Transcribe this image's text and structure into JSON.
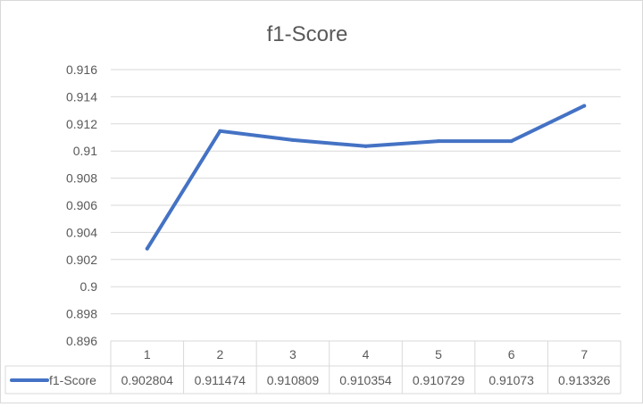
{
  "chart_data": {
    "type": "line",
    "title": "f1-Score",
    "categories": [
      "1",
      "2",
      "3",
      "4",
      "5",
      "6",
      "7"
    ],
    "series": [
      {
        "name": "f1-Score",
        "values": [
          0.902804,
          0.911474,
          0.910809,
          0.910354,
          0.910729,
          0.91073,
          0.913326
        ],
        "table_values": [
          "0.902804",
          "0.911474",
          "0.910809",
          "0.910354",
          "0.910729",
          "0.91073",
          "0.913326"
        ],
        "color": "#4472c4"
      }
    ],
    "ylim": [
      0.896,
      0.916
    ],
    "y_ticks": [
      "0.916",
      "0.914",
      "0.912",
      "0.91",
      "0.908",
      "0.906",
      "0.904",
      "0.902",
      "0.9",
      "0.898",
      "0.896"
    ],
    "grid": true,
    "legend": "data-table-left",
    "data_table": true
  }
}
